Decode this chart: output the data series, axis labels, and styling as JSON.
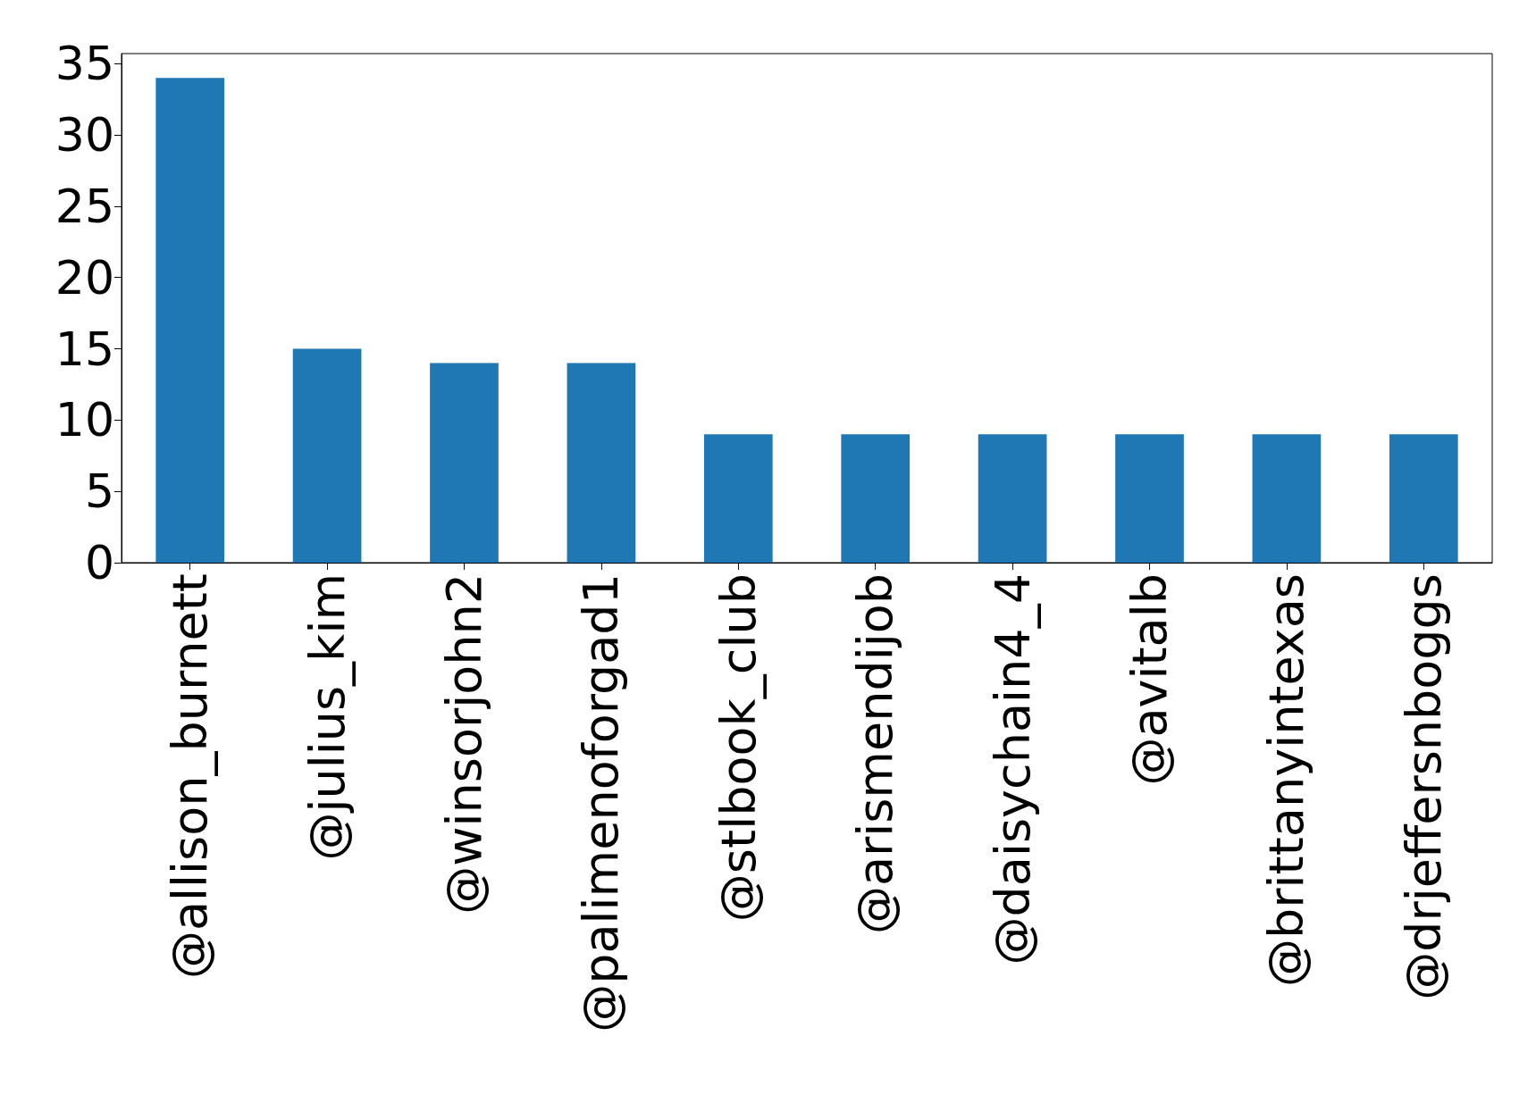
{
  "chart_data": {
    "type": "bar",
    "categories": [
      "@allison_burnett",
      "@julius_kim",
      "@winsorjohn2",
      "@palimenoforgad1",
      "@stlbook_club",
      "@arismendijob",
      "@daisychain4_4",
      "@avitalb",
      "@brittanyintexas",
      "@drjeffersnboggs"
    ],
    "values": [
      34,
      15,
      14,
      14,
      9,
      9,
      9,
      9,
      9,
      9
    ],
    "color": "#1f77b4",
    "ylim": [
      0,
      35.7
    ],
    "yticks": [
      0,
      5,
      10,
      15,
      20,
      25,
      30,
      35
    ],
    "grid": false
  }
}
